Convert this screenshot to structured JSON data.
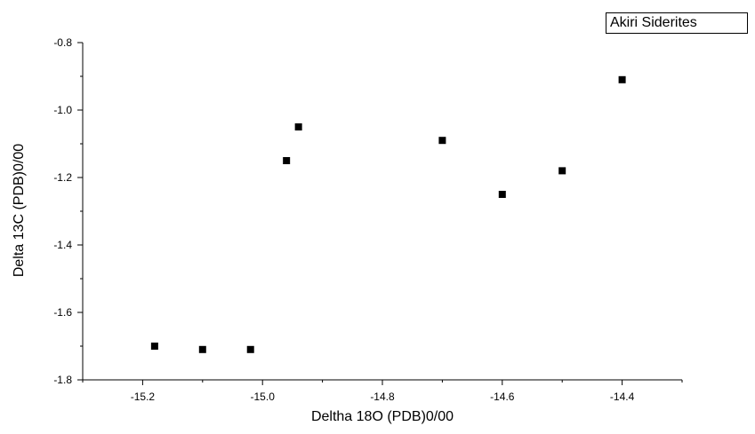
{
  "chart_data": {
    "type": "scatter",
    "title": "",
    "xlabel": "Deltha 18O (PDB)0/00",
    "ylabel": "Delta 13C (PDB)0/00",
    "xlim": [
      -15.3,
      -14.3
    ],
    "ylim": [
      -1.8,
      -0.8
    ],
    "xticks": [
      -15.2,
      -15.0,
      -14.8,
      -14.6,
      -14.4
    ],
    "xtick_labels": [
      "-15.2",
      "-15.0",
      "-14.8",
      "-14.6",
      "-14.4"
    ],
    "yticks": [
      -1.8,
      -1.6,
      -1.4,
      -1.2,
      -1.0,
      -0.8
    ],
    "ytick_labels": [
      "-1.8",
      "-1.6",
      "-1.4",
      "-1.2",
      "-1.0",
      "-0.8"
    ],
    "grid": false,
    "legend_placement": "top-right",
    "marker_color": "#000000",
    "series": [
      {
        "name": "Akiri Siderites",
        "marker": "square",
        "x": [
          -15.18,
          -15.1,
          -15.02,
          -14.96,
          -14.94,
          -14.7,
          -14.6,
          -14.5,
          -14.4
        ],
        "y": [
          -1.7,
          -1.71,
          -1.71,
          -1.15,
          -1.05,
          -1.09,
          -1.25,
          -1.18,
          -0.91
        ]
      }
    ]
  }
}
